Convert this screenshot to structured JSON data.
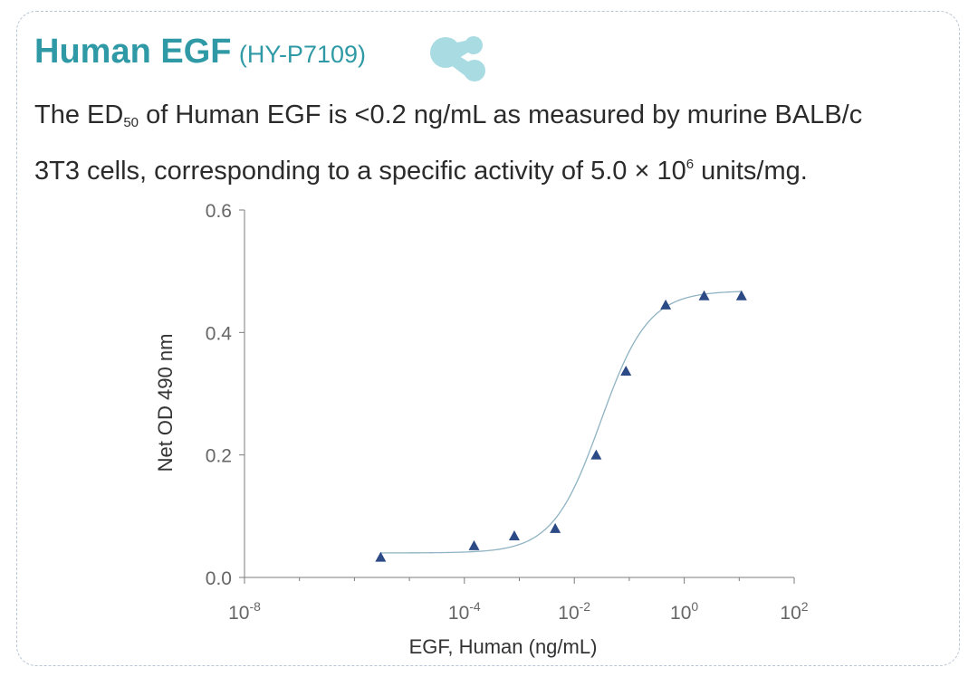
{
  "header": {
    "title": "Human EGF",
    "catalog": "(HY-P7109)"
  },
  "description": {
    "part1": "The ED",
    "sub": "50",
    "part2": " of Human EGF is <0.2 ng/mL as measured by murine BALB/c",
    "part3": "3T3 cells, corresponding to a specific activity of 5.0 × 10",
    "sup": "6",
    "part4": " units/mg."
  },
  "icons": {
    "logo": "molecule-logo-icon"
  },
  "colors": {
    "title": "#2f9aa6",
    "marker": "#2c4a85",
    "curve": "#8fb3c2",
    "logo": "#a9dbe3"
  },
  "chart_data": {
    "type": "scatter",
    "xlabel": "EGF, Human (ng/mL)",
    "ylabel": "Net OD 490 nm",
    "x_scale": "log10",
    "xlim": [
      1e-08,
      100
    ],
    "ylim": [
      0,
      0.6
    ],
    "x_ticks": [
      {
        "base": "10",
        "exp": "-8"
      },
      {
        "base": "10",
        "exp": "-4"
      },
      {
        "base": "10",
        "exp": "-2"
      },
      {
        "base": "10",
        "exp": "0"
      },
      {
        "base": "10",
        "exp": "2"
      }
    ],
    "y_ticks": [
      "0.0",
      "0.2",
      "0.4",
      "0.6"
    ],
    "marker": "triangle",
    "series": [
      {
        "x": [
          3e-06,
          0.00015,
          0.00081,
          0.0045,
          0.025,
          0.087,
          0.46,
          2.3,
          11
        ],
        "y": [
          0.033,
          0.052,
          0.068,
          0.08,
          0.2,
          0.337,
          0.445,
          0.46,
          0.46
        ]
      }
    ],
    "fit_curve": {
      "type": "4PL",
      "bottom": 0.04,
      "top": 0.468,
      "ec50": 0.03,
      "hill": 1.0,
      "x_range": [
        3e-06,
        11
      ]
    }
  }
}
